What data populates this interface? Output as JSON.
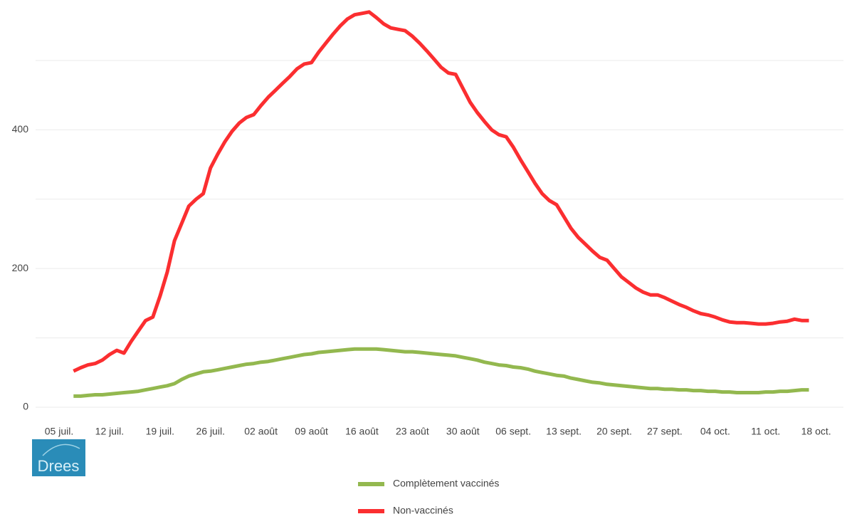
{
  "chart_data": {
    "type": "line",
    "categories": [
      "05 juil.",
      null,
      null,
      null,
      null,
      null,
      null,
      "12 juil.",
      null,
      null,
      null,
      null,
      null,
      null,
      "19 juil.",
      null,
      null,
      null,
      null,
      null,
      null,
      "26 juil.",
      null,
      null,
      null,
      null,
      null,
      null,
      "02 août",
      null,
      null,
      null,
      null,
      null,
      null,
      "09 août",
      null,
      null,
      null,
      null,
      null,
      null,
      "16 août",
      null,
      null,
      null,
      null,
      null,
      null,
      "23 août",
      null,
      null,
      null,
      null,
      null,
      null,
      "30 août",
      null,
      null,
      null,
      null,
      null,
      null,
      "06 sept.",
      null,
      null,
      null,
      null,
      null,
      null,
      "13 sept.",
      null,
      null,
      null,
      null,
      null,
      null,
      "20 sept.",
      null,
      null,
      null,
      null,
      null,
      null,
      "27 sept.",
      null,
      null,
      null,
      null,
      null,
      null,
      "04 oct.",
      null,
      null,
      null,
      null,
      null,
      null,
      "11 oct.",
      null,
      null,
      null,
      null,
      null,
      null,
      "18 oct."
    ],
    "series": [
      {
        "name": "Complètement vaccinés",
        "color": "#93b84f",
        "values": [
          null,
          null,
          16,
          16,
          17,
          18,
          18,
          19,
          20,
          21,
          22,
          23,
          25,
          27,
          29,
          31,
          34,
          40,
          45,
          48,
          51,
          52,
          54,
          56,
          58,
          60,
          62,
          63,
          65,
          66,
          68,
          70,
          72,
          74,
          76,
          77,
          79,
          80,
          81,
          82,
          83,
          84,
          84,
          84,
          84,
          83,
          82,
          81,
          80,
          80,
          79,
          78,
          77,
          76,
          75,
          74,
          72,
          70,
          68,
          65,
          63,
          61,
          60,
          58,
          57,
          55,
          52,
          50,
          48,
          46,
          45,
          42,
          40,
          38,
          36,
          35,
          33,
          32,
          31,
          30,
          29,
          28,
          27,
          27,
          26,
          26,
          25,
          25,
          24,
          24,
          23,
          23,
          22,
          22,
          21,
          21,
          21,
          21,
          22,
          22,
          23,
          23,
          24,
          25,
          25,
          null
        ]
      },
      {
        "name": "Non-vaccinés",
        "color": "#fb2e30",
        "values": [
          null,
          null,
          52,
          57,
          61,
          63,
          68,
          76,
          82,
          78,
          95,
          110,
          125,
          130,
          160,
          195,
          240,
          265,
          290,
          300,
          308,
          345,
          365,
          383,
          398,
          410,
          418,
          422,
          435,
          447,
          457,
          467,
          477,
          488,
          495,
          497,
          512,
          525,
          538,
          550,
          560,
          566,
          568,
          570,
          562,
          553,
          547,
          545,
          543,
          535,
          525,
          514,
          502,
          490,
          482,
          480,
          460,
          440,
          425,
          412,
          400,
          393,
          390,
          375,
          357,
          340,
          323,
          308,
          298,
          292,
          275,
          258,
          245,
          235,
          225,
          216,
          212,
          200,
          188,
          180,
          172,
          166,
          162,
          162,
          158,
          153,
          148,
          144,
          139,
          135,
          133,
          130,
          126,
          123,
          122,
          122,
          121,
          120,
          120,
          121,
          123,
          124,
          127,
          125,
          125,
          null
        ]
      }
    ],
    "ylim": [
      -18.5,
      577
    ],
    "yticks": [
      0,
      200,
      400
    ],
    "yticks_minor": [
      100,
      300,
      500
    ],
    "grid": true,
    "legend": "bottom",
    "logo": "Drees"
  }
}
